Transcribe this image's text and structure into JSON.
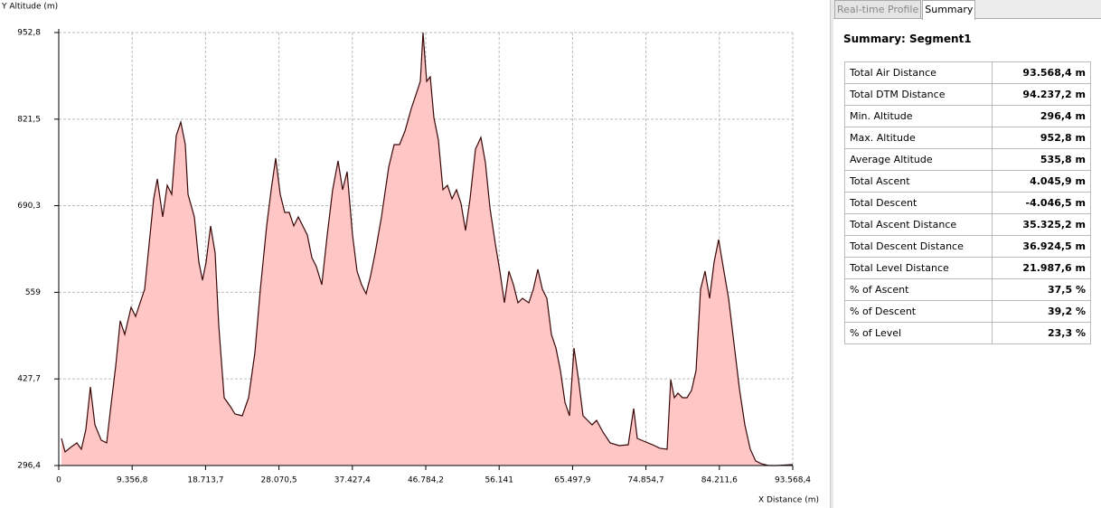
{
  "chart_data": {
    "type": "area",
    "y_label": "Y Altitude (m)",
    "x_label": "X Distance (m)",
    "xlim": [
      0,
      93568.4
    ],
    "ylim": [
      296.4,
      952.8
    ],
    "xticks": [
      0,
      {
        "value": 9356.8,
        "label": "9.356,8"
      },
      {
        "value": 18713.7,
        "label": "18.713,7"
      },
      {
        "value": 28070.5,
        "label": "28.070,5"
      },
      {
        "value": 37427.4,
        "label": "37.427,4"
      },
      {
        "value": 46784.2,
        "label": "46.784,2"
      },
      {
        "value": 56141,
        "label": "56.141"
      },
      {
        "value": 65497.9,
        "label": "65.497,9"
      },
      {
        "value": 74854.7,
        "label": "74.854,7"
      },
      {
        "value": 84211.6,
        "label": "84.211,6"
      },
      {
        "value": 93568.4,
        "label": "93.568,4"
      }
    ],
    "yticks": [
      {
        "value": 296.4,
        "label": "296,4"
      },
      {
        "value": 427.7,
        "label": "427,7"
      },
      559,
      {
        "value": 690.3,
        "label": "690,3"
      },
      {
        "value": 821.5,
        "label": "821,5"
      },
      {
        "value": 952.8,
        "label": "952,8"
      }
    ],
    "grid": true,
    "color": "#3a0808",
    "area_color": "#ffc6c6",
    "x": [
      346,
      807,
      1498,
      2305,
      2881,
      3457,
      4033,
      4609,
      5416,
      6107,
      6568,
      7260,
      7836,
      8412,
      9219,
      9795,
      10371,
      10947,
      11523,
      12099,
      12560,
      13252,
      13828,
      14404,
      14980,
      15556,
      16132,
      16478,
      17285,
      17861,
      18322,
      18783,
      19359,
      19935,
      20396,
      21087,
      21894,
      22470,
      23392,
      24199,
      25005,
      25697,
      26503,
      27080,
      27656,
      28232,
      28808,
      29384,
      29960,
      30536,
      31113,
      31689,
      32265,
      32841,
      33533,
      34224,
      34915,
      35607,
      36183,
      36759,
      37450,
      38027,
      38603,
      39179,
      39755,
      40331,
      41138,
      42060,
      42751,
      43442,
      44134,
      44940,
      45517,
      46093,
      46438,
      46899,
      47360,
      47821,
      48397,
      48974,
      49550,
      50126,
      50702,
      51278,
      51854,
      52431,
      53122,
      53813,
      54390,
      54966,
      55657,
      56233,
      56809,
      57386,
      57962,
      58538,
      59114,
      59921,
      60497,
      61073,
      61649,
      62225,
      62801,
      63378,
      63954,
      64530,
      65106,
      65682,
      66258,
      66835,
      67411,
      67987,
      68563,
      69370,
      70292,
      71444,
      72596,
      73288,
      73748,
      74555,
      75707,
      76629,
      77551,
      78012,
      78473,
      78934,
      79510,
      80086,
      80662,
      81239,
      81815,
      82391,
      82967,
      83543,
      84119,
      84696,
      85387,
      86078,
      86770,
      87461,
      88152,
      88844,
      89535,
      90457,
      91609,
      93568.4
    ],
    "values": [
      337.5,
      317.0,
      323.8,
      330.7,
      321.1,
      351.2,
      415.6,
      358.1,
      334.8,
      330.7,
      378.6,
      447.2,
      515.7,
      495.1,
      536.2,
      522.5,
      543.1,
      563.6,
      632.2,
      700.7,
      730.8,
      673.3,
      721.2,
      707.5,
      796.6,
      817.1,
      782.9,
      707.5,
      673.3,
      604.7,
      577.3,
      604.7,
      659.6,
      618.4,
      508.8,
      399.2,
      385.5,
      374.5,
      371.8,
      399.2,
      467.7,
      563.6,
      659.6,
      714.4,
      762.3,
      707.5,
      680.1,
      680.1,
      659.6,
      673.3,
      659.6,
      645.9,
      611.6,
      597.9,
      570.5,
      645.9,
      714.4,
      758.2,
      714.4,
      741.8,
      645.9,
      591.0,
      570.5,
      556.8,
      584.2,
      618.4,
      673.3,
      748.6,
      782.9,
      782.9,
      803.4,
      837.7,
      858.2,
      878.8,
      952.8,
      878.8,
      885.7,
      824.0,
      789.7,
      714.4,
      721.2,
      700.7,
      714.4,
      693.8,
      652.7,
      700.7,
      776.0,
      793.8,
      755.5,
      687.0,
      632.2,
      591.0,
      543.1,
      591.0,
      570.5,
      543.1,
      549.9,
      543.1,
      563.6,
      593.8,
      563.6,
      549.9,
      495.1,
      474.6,
      440.3,
      392.3,
      371.8,
      474.6,
      426.6,
      371.8,
      364.9,
      358.1,
      364.9,
      347.1,
      330.7,
      326.6,
      327.9,
      382.8,
      337.5,
      333.4,
      327.9,
      322.5,
      321.1,
      426.6,
      399.2,
      406.1,
      399.2,
      399.2,
      410.2,
      440.3,
      563.6,
      591.0,
      549.9,
      604.7,
      639.0,
      597.9,
      549.9,
      481.4,
      412.9,
      358.1,
      321.1,
      303.3,
      299.2,
      296.4,
      296.4,
      297.8
    ]
  },
  "tabs": [
    "Real-time Profile",
    "Summary"
  ],
  "summary": {
    "title": "Summary: Segment1",
    "rows": [
      [
        "Total Air Distance",
        "93.568,4 m"
      ],
      [
        "Total DTM Distance",
        "94.237,2 m"
      ],
      [
        "Min. Altitude",
        "296,4 m"
      ],
      [
        "Max. Altitude",
        "952,8 m"
      ],
      [
        "Average Altitude",
        "535,8 m"
      ],
      [
        "Total Ascent",
        "4.045,9 m"
      ],
      [
        "Total Descent",
        "-4.046,5 m"
      ],
      [
        "Total Ascent Distance",
        "35.325,2 m"
      ],
      [
        "Total Descent Distance",
        "36.924,5 m"
      ],
      [
        "Total Level Distance",
        "21.987,6 m"
      ],
      [
        "% of Ascent",
        "37,5 %"
      ],
      [
        "% of Descent",
        "39,2 %"
      ],
      [
        "% of Level",
        "23,3 %"
      ]
    ]
  }
}
